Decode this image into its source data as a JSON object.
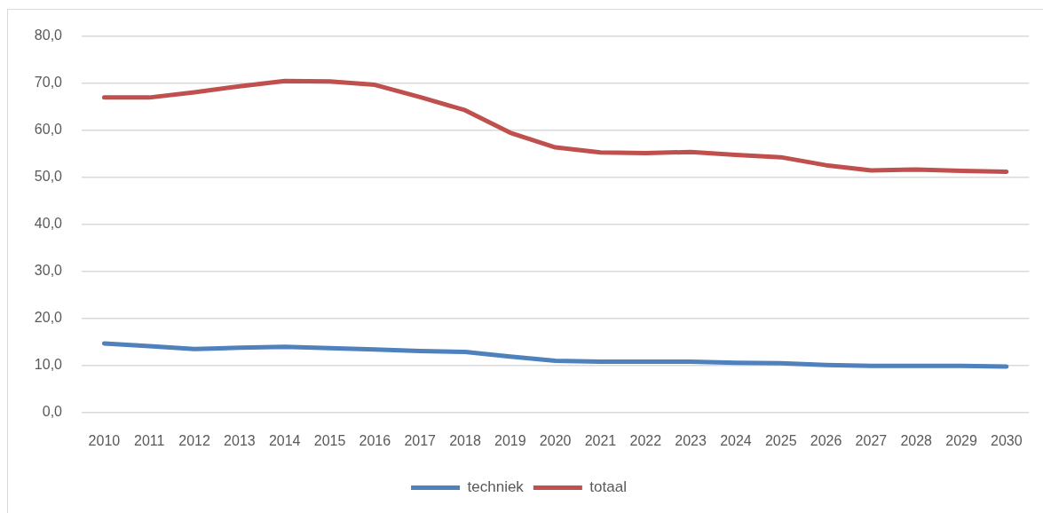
{
  "chart_data": {
    "type": "line",
    "categories": [
      "2010",
      "2011",
      "2012",
      "2013",
      "2014",
      "2015",
      "2016",
      "2017",
      "2018",
      "2019",
      "2020",
      "2021",
      "2022",
      "2023",
      "2024",
      "2025",
      "2026",
      "2027",
      "2028",
      "2029",
      "2030"
    ],
    "series": [
      {
        "name": "techniek",
        "color": "#4f81bd",
        "values": [
          14.7,
          14.1,
          13.5,
          13.8,
          14.0,
          13.7,
          13.4,
          13.1,
          12.9,
          11.9,
          11.0,
          10.8,
          10.8,
          10.8,
          10.6,
          10.5,
          10.1,
          9.9,
          9.9,
          9.9,
          9.8
        ]
      },
      {
        "name": "totaal",
        "color": "#c0504d",
        "values": [
          67.0,
          67.0,
          68.1,
          69.4,
          70.5,
          70.4,
          69.7,
          67.1,
          64.3,
          59.5,
          56.4,
          55.3,
          55.2,
          55.4,
          54.8,
          54.3,
          52.6,
          51.5,
          51.7,
          51.4,
          51.2
        ]
      }
    ],
    "ylim": [
      0,
      80
    ],
    "yticks": [
      {
        "value": 0,
        "label": "0,0"
      },
      {
        "value": 10,
        "label": "10,0"
      },
      {
        "value": 20,
        "label": "20,0"
      },
      {
        "value": 30,
        "label": "30,0"
      },
      {
        "value": 40,
        "label": "40,0"
      },
      {
        "value": 50,
        "label": "50,0"
      },
      {
        "value": 60,
        "label": "60,0"
      },
      {
        "value": 70,
        "label": "70,0"
      },
      {
        "value": 80,
        "label": "80,0"
      }
    ],
    "grid": "y",
    "legend": "bottom",
    "marker": "none",
    "line_style": "solid"
  }
}
